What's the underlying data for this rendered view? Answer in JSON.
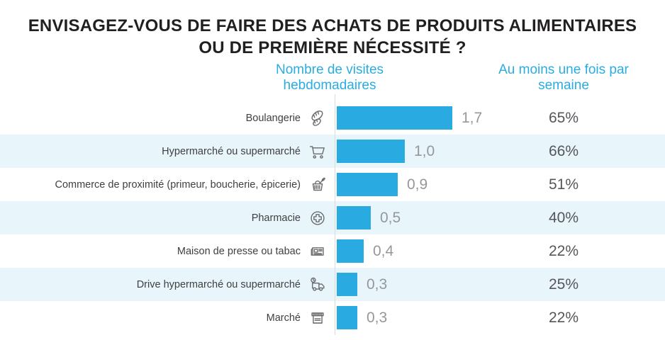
{
  "title": {
    "line1": "ENVISAGEZ-VOUS DE FAIRE DES ACHATS DE PRODUITS ALIMENTAIRES",
    "line2": "OU DE PREMIÈRE NÉCESSITÉ ?"
  },
  "columns": {
    "visits_header": "Nombre de visites hebdomadaires",
    "weekly_header": "Au moins une fois par semaine"
  },
  "colors": {
    "bar": "#29ABE2",
    "header_text": "#2AACE3",
    "row_alt_background": "#E8F5FB",
    "title_text": "#221F20",
    "label_text": "#3F4042",
    "value_text": "#95989A",
    "percent_text": "#55565A"
  },
  "rows": [
    {
      "label": "Boulangerie",
      "icon": "bread-icon",
      "visits": 1.7,
      "visits_display": "1,7",
      "weekly_pct": 65,
      "weekly_display": "65%"
    },
    {
      "label": "Hypermarché ou supermarché",
      "icon": "shopping-cart-icon",
      "visits": 1.0,
      "visits_display": "1,0",
      "weekly_pct": 66,
      "weekly_display": "66%"
    },
    {
      "label": "Commerce de proximité (primeur, boucherie, épicerie)",
      "icon": "shopping-basket-icon",
      "visits": 0.9,
      "visits_display": "0,9",
      "weekly_pct": 51,
      "weekly_display": "51%"
    },
    {
      "label": "Pharmacie",
      "icon": "medical-cross-icon",
      "visits": 0.5,
      "visits_display": "0,5",
      "weekly_pct": 40,
      "weekly_display": "40%"
    },
    {
      "label": "Maison de presse ou tabac",
      "icon": "newspaper-icon",
      "visits": 0.4,
      "visits_display": "0,4",
      "weekly_pct": 22,
      "weekly_display": "22%"
    },
    {
      "label": "Drive hypermarché ou supermarché",
      "icon": "delivery-truck-icon",
      "visits": 0.3,
      "visits_display": "0,3",
      "weekly_pct": 25,
      "weekly_display": "25%"
    },
    {
      "label": "Marché",
      "icon": "market-stall-icon",
      "visits": 0.3,
      "visits_display": "0,3",
      "weekly_pct": 22,
      "weekly_display": "22%"
    }
  ],
  "chart_data": {
    "type": "bar",
    "orientation": "horizontal",
    "title": "ENVISAGEZ-VOUS DE FAIRE DES ACHATS DE PRODUITS ALIMENTAIRES OU DE PREMIÈRE NÉCESSITÉ ?",
    "categories": [
      "Boulangerie",
      "Hypermarché ou supermarché",
      "Commerce de proximité (primeur, boucherie, épicerie)",
      "Pharmacie",
      "Maison de presse ou tabac",
      "Drive hypermarché ou supermarché",
      "Marché"
    ],
    "series": [
      {
        "name": "Nombre de visites hebdomadaires",
        "values": [
          1.7,
          1.0,
          0.9,
          0.5,
          0.4,
          0.3,
          0.3
        ]
      },
      {
        "name": "Au moins une fois par semaine",
        "unit": "%",
        "values": [
          65,
          66,
          51,
          40,
          22,
          25,
          22
        ]
      }
    ],
    "xlim": [
      0,
      1.8
    ],
    "grid": false,
    "data_labels": true,
    "legend_position": "column-headers",
    "striped_rows": true
  }
}
